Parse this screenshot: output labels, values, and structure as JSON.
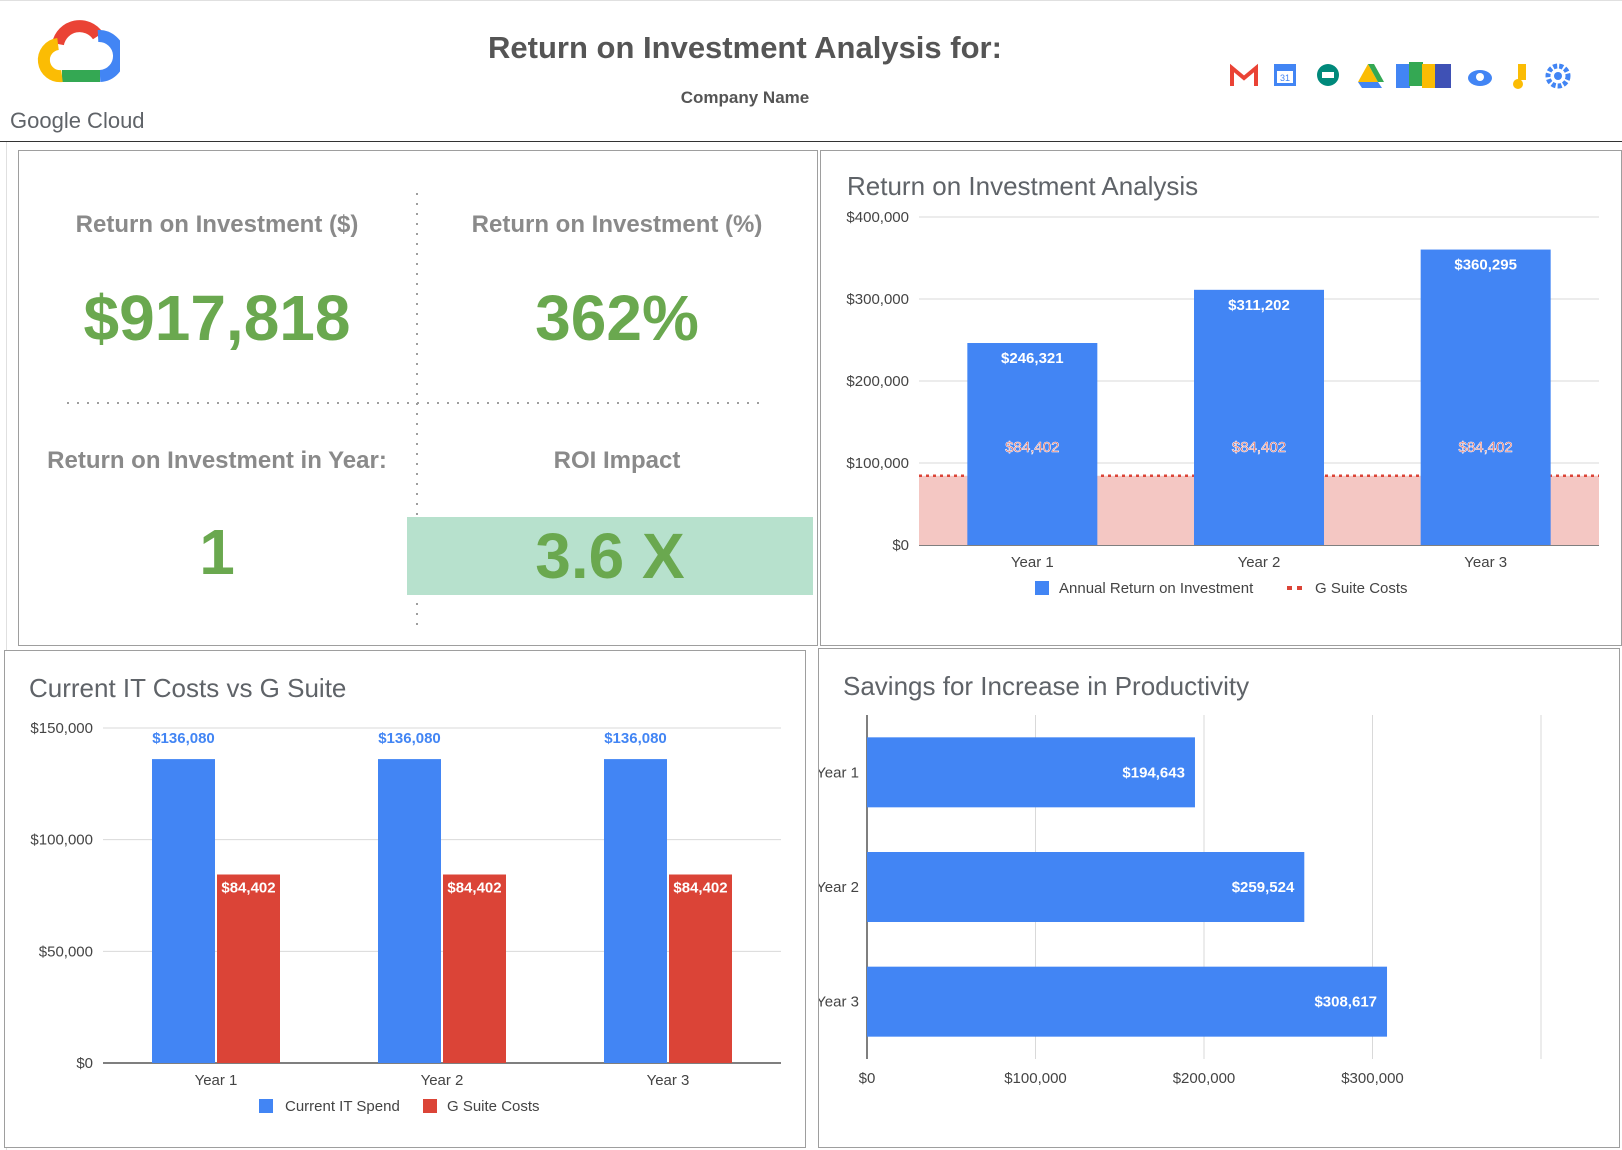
{
  "header": {
    "title": "Return on Investment Analysis for:",
    "subtitle": "Company Name",
    "brand": "Google Cloud",
    "icons": [
      "gmail-icon",
      "calendar-icon",
      "hangouts-chat-icon",
      "drive-icon",
      "docs-sheets-slides-icon",
      "cloud-search-icon",
      "keep-icon",
      "admin-gear-icon"
    ]
  },
  "kpis": {
    "roi_dollars_label": "Return on Investment ($)",
    "roi_dollars_value": "$917,818",
    "roi_percent_label": "Return on Investment (%)",
    "roi_percent_value": "362%",
    "roi_year_label": "Return on Investment in Year:",
    "roi_year_value": "1",
    "roi_impact_label": "ROI Impact",
    "roi_impact_value": "3.6 X"
  },
  "colors": {
    "blue": "#4285f4",
    "red": "#db4437",
    "green": "#6aa84f",
    "impact_bg": "#b7e1cd",
    "cost_fill": "#f4c7c3"
  },
  "chart_data": [
    {
      "id": "roi",
      "type": "bar",
      "title": "Return on Investment Analysis",
      "categories": [
        "Year 1",
        "Year 2",
        "Year 3"
      ],
      "series": [
        {
          "name": "Annual Return on Investment",
          "values": [
            246321,
            311202,
            360295
          ],
          "labels": [
            "$246,321",
            "$311,202",
            "$360,295"
          ]
        },
        {
          "name": "G Suite Costs",
          "values": [
            84402,
            84402,
            84402
          ],
          "labels": [
            "$84,402",
            "$84,402",
            "$84,402"
          ]
        }
      ],
      "ylim": [
        0,
        400000
      ],
      "yticks": [
        "$0",
        "$100,000",
        "$200,000",
        "$300,000",
        "$400,000"
      ],
      "legend": "bottom"
    },
    {
      "id": "it_costs",
      "type": "bar",
      "title": "Current IT Costs vs G Suite",
      "categories": [
        "Year 1",
        "Year 2",
        "Year 3"
      ],
      "series": [
        {
          "name": "Current IT Spend",
          "values": [
            136080,
            136080,
            136080
          ],
          "labels": [
            "$136,080",
            "$136,080",
            "$136,080"
          ]
        },
        {
          "name": "G Suite Costs",
          "values": [
            84402,
            84402,
            84402
          ],
          "labels": [
            "$84,402",
            "$84,402",
            "$84,402"
          ]
        }
      ],
      "ylim": [
        0,
        150000
      ],
      "yticks": [
        "$0",
        "$50,000",
        "$100,000",
        "$150,000"
      ],
      "legend": "bottom"
    },
    {
      "id": "productivity",
      "type": "bar",
      "orientation": "horizontal",
      "title": "Savings for Increase in Productivity",
      "categories": [
        "Year 1",
        "Year 2",
        "Year 3"
      ],
      "values": [
        194643,
        259524,
        308617
      ],
      "labels": [
        "$194,643",
        "$259,524",
        "$308,617"
      ],
      "xlim": [
        0,
        400000
      ],
      "xticks": [
        "$0",
        "$100,000",
        "$200,000",
        "$300,000"
      ]
    }
  ]
}
